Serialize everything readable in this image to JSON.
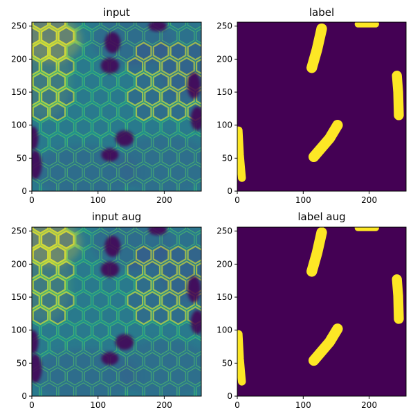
{
  "chart_data": [
    {
      "type": "heatmap",
      "title": "input",
      "colormap": "viridis",
      "xlim": [
        0,
        256
      ],
      "ylim": [
        256,
        0
      ],
      "xticks": [
        0,
        100,
        200
      ],
      "yticks": [
        0,
        50,
        100,
        150,
        200,
        250
      ]
    },
    {
      "type": "heatmap",
      "title": "label",
      "colormap": "viridis",
      "xlim": [
        0,
        256
      ],
      "ylim": [
        256,
        0
      ],
      "xticks": [
        0,
        100,
        200
      ],
      "yticks": [
        0,
        50,
        100,
        150,
        200,
        250
      ],
      "background_value": 0,
      "foreground_value": 1,
      "mask_strokes": [
        {
          "points": [
            [
              7,
              20
            ],
            [
              4,
              55
            ],
            [
              2,
              92
            ]
          ],
          "width": 12
        },
        {
          "points": [
            [
              116,
              52
            ],
            [
              140,
              80
            ],
            [
              152,
              100
            ]
          ],
          "width": 16
        },
        {
          "points": [
            [
              245,
              115
            ],
            [
              244,
              150
            ],
            [
              242,
              175
            ]
          ],
          "width": 15
        },
        {
          "points": [
            [
              113,
              187
            ],
            [
              121,
              215
            ],
            [
              128,
              246
            ]
          ],
          "width": 16
        },
        {
          "points": [
            [
              183,
              253
            ],
            [
              210,
              253
            ]
          ],
          "width": 10
        }
      ]
    },
    {
      "type": "heatmap",
      "title": "input aug",
      "colormap": "viridis",
      "xlim": [
        0,
        256
      ],
      "ylim": [
        256,
        0
      ],
      "xticks": [
        0,
        100,
        200
      ],
      "yticks": [
        0,
        50,
        100,
        150,
        200,
        250
      ]
    },
    {
      "type": "heatmap",
      "title": "label aug",
      "colormap": "viridis",
      "xlim": [
        0,
        256
      ],
      "ylim": [
        256,
        0
      ],
      "xticks": [
        0,
        100,
        200
      ],
      "yticks": [
        0,
        50,
        100,
        150,
        200,
        250
      ],
      "background_value": 0,
      "foreground_value": 1,
      "mask_strokes": [
        {
          "points": [
            [
              7,
              22
            ],
            [
              4,
              57
            ],
            [
              2,
              94
            ]
          ],
          "width": 12
        },
        {
          "points": [
            [
              116,
              54
            ],
            [
              140,
              82
            ],
            [
              152,
              102
            ]
          ],
          "width": 16
        },
        {
          "points": [
            [
              245,
              117
            ],
            [
              244,
              152
            ],
            [
              242,
              177
            ]
          ],
          "width": 15
        },
        {
          "points": [
            [
              113,
              189
            ],
            [
              121,
              217
            ],
            [
              128,
              248
            ]
          ],
          "width": 16
        },
        {
          "points": [
            [
              183,
              255
            ],
            [
              210,
              255
            ]
          ],
          "width": 10
        }
      ]
    }
  ],
  "colors": {
    "viridis_low": "#440154",
    "viridis_dark": "#3b528b",
    "viridis_mid": "#21918c",
    "viridis_bright": "#5ec962",
    "viridis_high": "#fde725"
  }
}
